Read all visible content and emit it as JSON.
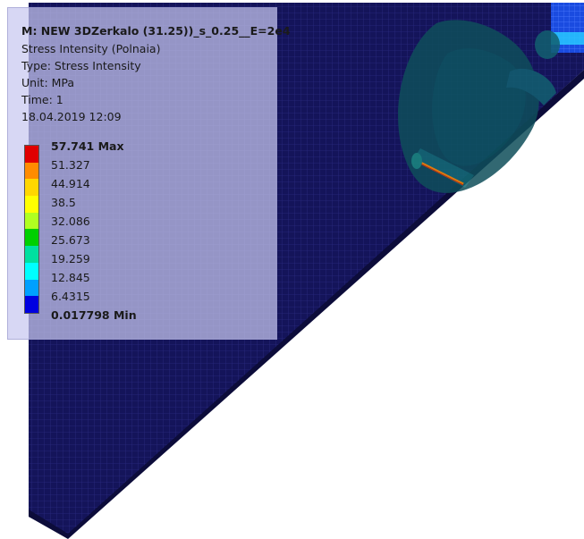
{
  "result": {
    "model": "M: NEW 3DZerkalo (31.25))_s_0.25__E=2e4",
    "name": "Stress Intensity (Polnaia)",
    "type": "Type: Stress Intensity",
    "unit": "Unit: MPa",
    "time": "Time: 1",
    "date": "18.04.2019 12:09"
  },
  "legend": {
    "labels": [
      "57.741 Max",
      "51.327",
      "44.914",
      "38.5",
      "32.086",
      "25.673",
      "19.259",
      "12.845",
      "6.4315",
      "0.017798 Min"
    ],
    "colors": [
      "#e00000",
      "#ff8c00",
      "#ffd700",
      "#ffff00",
      "#b0ff20",
      "#00d000",
      "#00e0a0",
      "#00ffff",
      "#00a0ff",
      "#0000e0"
    ]
  },
  "colors": {
    "mesh_fill": "#14145a",
    "mesh_line": "#2a2a80",
    "feature_fill": "#0f4e5a",
    "hotspot": "#ff8c00",
    "panel_bg": "#c8c8f0"
  }
}
